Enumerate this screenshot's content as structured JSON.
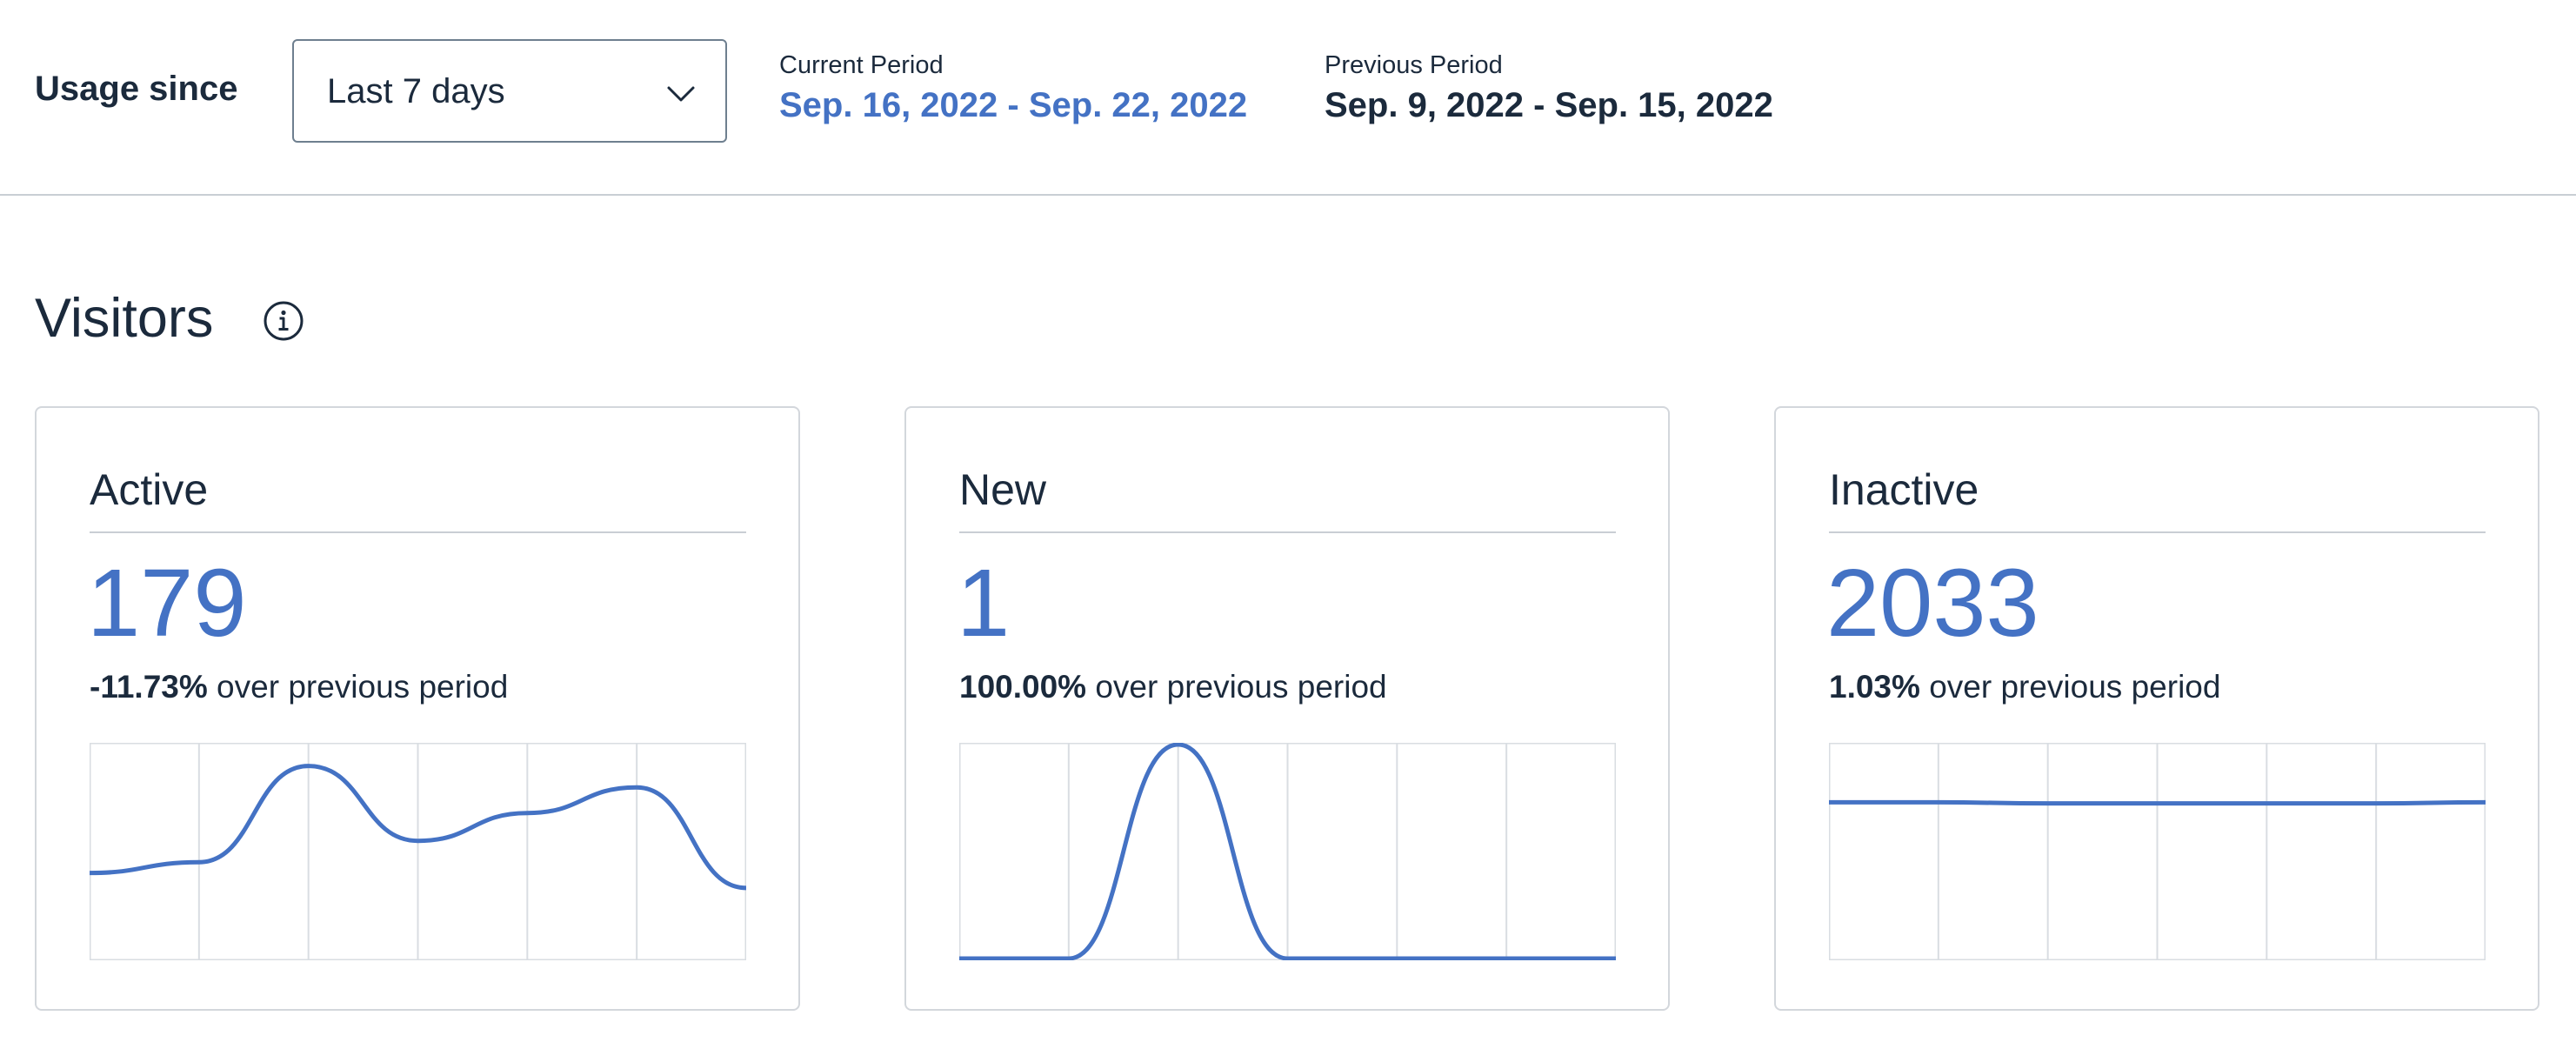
{
  "header": {
    "usage_label": "Usage since",
    "period_select": {
      "value": "Last 7 days"
    },
    "current_period": {
      "caption": "Current Period",
      "range": "Sep. 16, 2022 - Sep. 22, 2022"
    },
    "previous_period": {
      "caption": "Previous Period",
      "range": "Sep. 9, 2022 - Sep. 15, 2022"
    }
  },
  "section": {
    "title": "Visitors",
    "info_icon": "info-icon"
  },
  "colors": {
    "accent": "#4472c4",
    "text": "#1b2a3c",
    "border": "#d3d7dc",
    "grid": "#d9dde2"
  },
  "cards": [
    {
      "title": "Active",
      "value": "179",
      "change": "-11.73%",
      "change_suffix": " over previous period"
    },
    {
      "title": "New",
      "value": "1",
      "change": "100.00%",
      "change_suffix": " over previous period"
    },
    {
      "title": "Inactive",
      "value": "2033",
      "change": "1.03%",
      "change_suffix": " over previous period"
    }
  ],
  "chart_data": [
    {
      "type": "line",
      "series_of": "Active",
      "values": [
        0.4,
        0.45,
        0.9,
        0.55,
        0.68,
        0.8,
        0.33
      ]
    },
    {
      "type": "line",
      "series_of": "New",
      "values": [
        0.0,
        0.0,
        1.0,
        0.0,
        0.0,
        0.0,
        0.0
      ]
    },
    {
      "type": "line",
      "series_of": "Inactive",
      "values": [
        0.73,
        0.73,
        0.725,
        0.725,
        0.725,
        0.725,
        0.73
      ]
    }
  ]
}
